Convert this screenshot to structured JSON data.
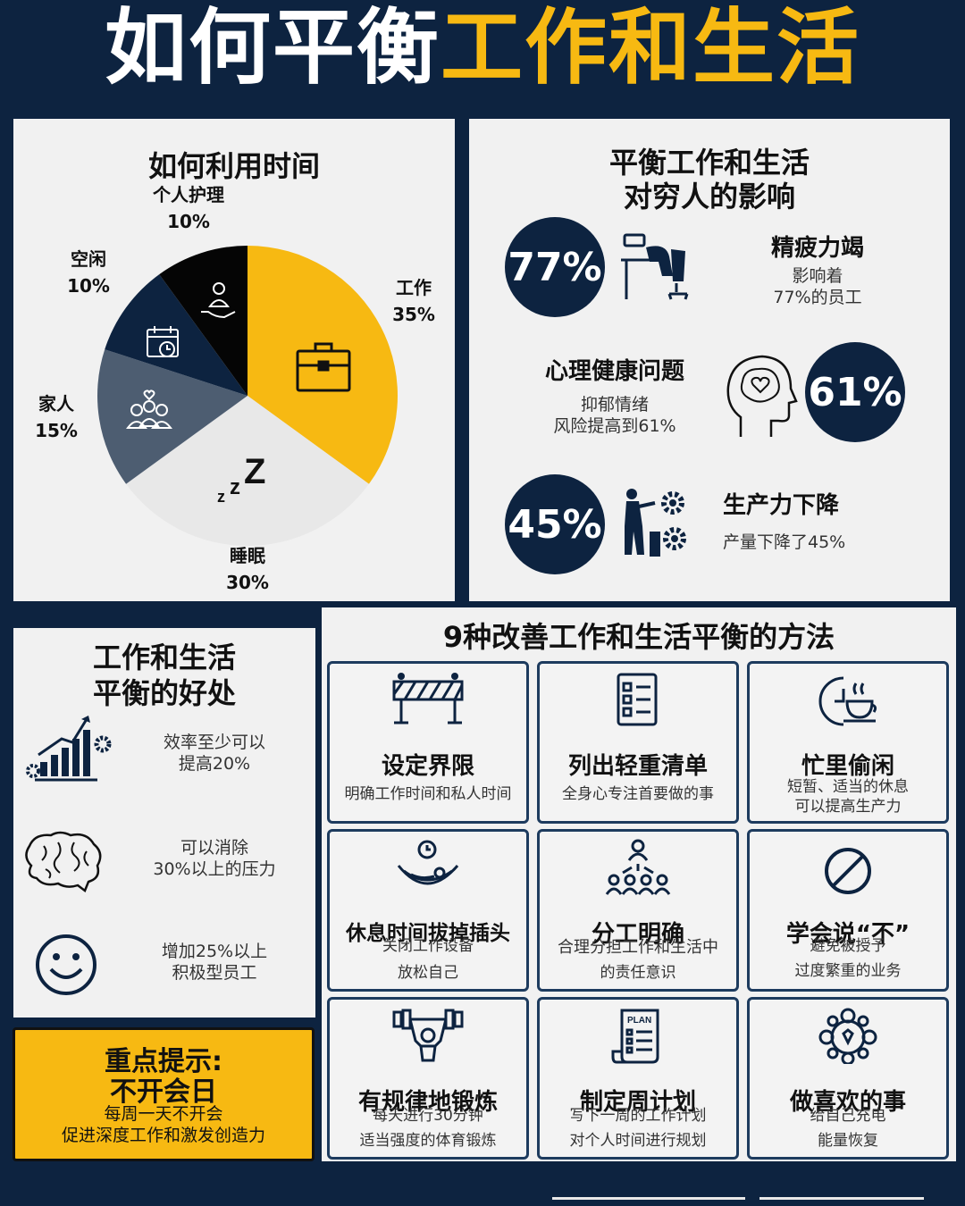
{
  "title": {
    "part1": "如何平衡",
    "part2": "工作和生活"
  },
  "time_panel": {
    "heading": "如何利用时间"
  },
  "chart_data": {
    "type": "pie",
    "title": "如何利用时间",
    "slices": [
      {
        "label": "工作",
        "value": 35,
        "display": "35%",
        "color": "#f7b912",
        "icon": "briefcase-icon"
      },
      {
        "label": "睡眠",
        "value": 30,
        "display": "30%",
        "color": "#e8e8e8",
        "icon": "sleep-zzz-icon"
      },
      {
        "label": "家人",
        "value": 15,
        "display": "15%",
        "color": "#4d5d71",
        "icon": "family-icon"
      },
      {
        "label": "空闲",
        "value": 10,
        "display": "10%",
        "color": "#0d2340",
        "icon": "calendar-icon"
      },
      {
        "label": "个人护理",
        "value": 10,
        "display": "10%",
        "color": "#050505",
        "icon": "self-care-icon"
      }
    ]
  },
  "impact_panel": {
    "heading_line1": "平衡工作和生活",
    "heading_line2": "对穷人的影响",
    "stats": [
      {
        "value": "77%",
        "title": "精疲力竭",
        "desc_line1": "影响着",
        "desc_line2": "77%的员工",
        "icon": "burnout-icon"
      },
      {
        "value": "61%",
        "title": "心理健康问题",
        "desc_line1": "抑郁情绪",
        "desc_line2": "风险提高到61%",
        "icon": "brain-heart-icon"
      },
      {
        "value": "45%",
        "title": "生产力下降",
        "desc_line1": "产量下降了45%",
        "desc_line2": "",
        "icon": "productivity-gears-icon"
      }
    ]
  },
  "benefits_panel": {
    "heading_line1": "工作和生活",
    "heading_line2": "平衡的好处",
    "items": [
      {
        "line1": "效率至少可以",
        "line2": "提高20%",
        "icon": "growth-chart-icon"
      },
      {
        "line1": "可以消除",
        "line2": "30%以上的压力",
        "icon": "brain-icon"
      },
      {
        "line1": "增加25%以上",
        "line2": "积极型员工",
        "icon": "smiley-icon"
      }
    ]
  },
  "tip": {
    "title_line1": "重点提示:",
    "title_line2": "不开会日",
    "desc_line1": "每周一天不开会",
    "desc_line2": "促进深度工作和激发创造力"
  },
  "methods": {
    "heading": "9种改善工作和生活平衡的方法",
    "cards": [
      {
        "title": "设定界限",
        "desc_line1": "明确工作时间和私人时间",
        "desc_line2": "",
        "icon": "barrier-icon"
      },
      {
        "title": "列出轻重清单",
        "desc_line1": "全身心专注首要做的事",
        "desc_line2": "",
        "icon": "checklist-icon"
      },
      {
        "title": "忙里偷闲",
        "desc_line1": "短暂、适当的休息",
        "desc_line2": "可以提高生产力",
        "icon": "coffee-clock-icon"
      },
      {
        "title": "休息时间拔掉插头",
        "desc_line1": "关闭工作设备",
        "desc_line2": "放松自己",
        "icon": "hammock-icon"
      },
      {
        "title": "分工明确",
        "desc_line1": "合理分担工作和生活中",
        "desc_line2": "的责任意识",
        "icon": "team-delegate-icon"
      },
      {
        "title": "学会说“不”",
        "desc_line1": "避免被授予",
        "desc_line2": "过度繁重的业务",
        "icon": "no-sign-icon"
      },
      {
        "title": "有规律地锻炼",
        "desc_line1": "每天进行30分钟",
        "desc_line2": "适当强度的体育锻炼",
        "icon": "weightlifting-icon"
      },
      {
        "title": "制定周计划",
        "desc_line1": "写下一周的工作计划",
        "desc_line2": "对个人时间进行规划",
        "icon": "plan-scroll-icon"
      },
      {
        "title": "做喜欢的事",
        "desc_line1": "给自己充电",
        "desc_line2": "能量恢复",
        "icon": "hobbies-icon"
      }
    ]
  }
}
